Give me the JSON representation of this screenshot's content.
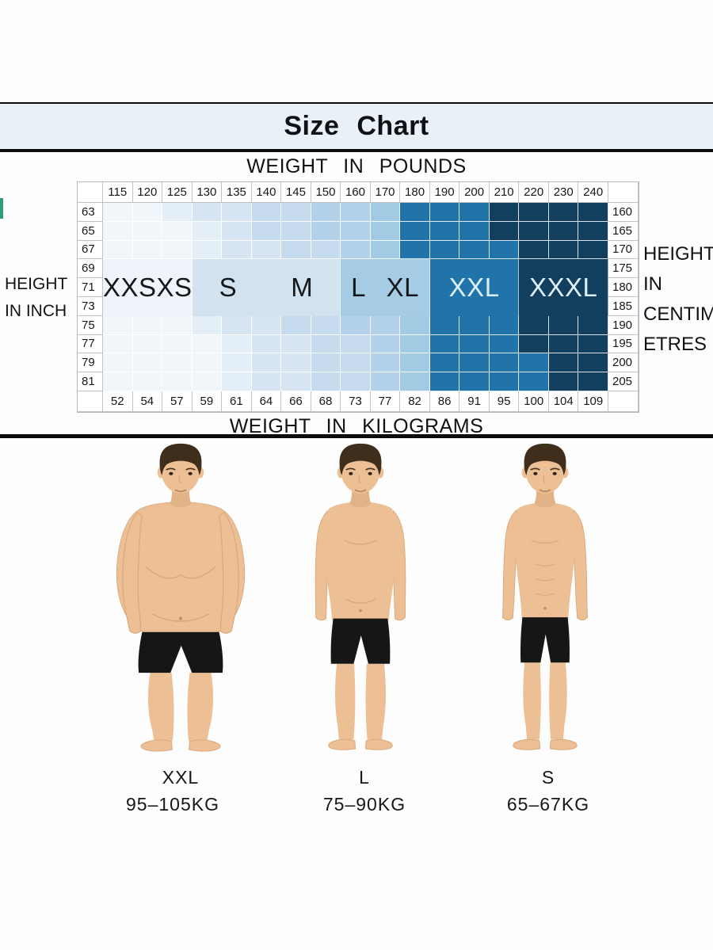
{
  "title": {
    "text": "Size Chart"
  },
  "axes": {
    "inch_label_lines": [
      "HEIGHT",
      "IN INCH"
    ],
    "cm_label_lines": [
      "HEIGHT",
      "IN",
      "CENTIM",
      "ETRES"
    ]
  },
  "accent": {
    "green_tab": "#2f9e78",
    "title_band_bg": "#e9f0f8"
  },
  "chart_data": {
    "type": "heatmap",
    "title": "Size Chart",
    "x_top": {
      "label": "WEIGHT IN POUNDS",
      "ticks": [
        "115",
        "120",
        "125",
        "130",
        "135",
        "140",
        "145",
        "150",
        "160",
        "170",
        "180",
        "190",
        "200",
        "210",
        "220",
        "230",
        "240"
      ]
    },
    "x_bottom": {
      "label": "WEIGHT IN KILOGRAMS",
      "ticks": [
        "52",
        "54",
        "57",
        "59",
        "61",
        "64",
        "66",
        "68",
        "73",
        "77",
        "82",
        "86",
        "91",
        "95",
        "100",
        "104",
        "109"
      ]
    },
    "y_left": {
      "label": "HEIGHT IN INCH",
      "ticks": [
        "63",
        "65",
        "67",
        "69",
        "71",
        "73",
        "75",
        "77",
        "79",
        "81"
      ]
    },
    "y_right": {
      "label": "HEIGHT IN CENTIMETRES",
      "ticks": [
        "160",
        "165",
        "170",
        "175",
        "180",
        "185",
        "190",
        "195",
        "200",
        "205"
      ]
    },
    "sizes": [
      "XXS",
      "XS",
      "S",
      "M",
      "L",
      "XL",
      "XXL",
      "XXXL"
    ],
    "palette": [
      "#f1f6fb",
      "#e4eef7",
      "#d6e5f1",
      "#c6dcee",
      "#b3d2e9",
      "#a3cae3",
      "#2174a9",
      "#133f5e"
    ],
    "top_rows": [
      {
        "inch": "63",
        "cm": "160",
        "cells": [
          0,
          0,
          1,
          2,
          2,
          3,
          3,
          4,
          4,
          5,
          6,
          6,
          6,
          7,
          7,
          7,
          7
        ]
      },
      {
        "inch": "65",
        "cm": "165",
        "cells": [
          0,
          0,
          0,
          1,
          2,
          3,
          3,
          4,
          4,
          5,
          6,
          6,
          6,
          7,
          7,
          7,
          7
        ]
      },
      {
        "inch": "67",
        "cm": "170",
        "cells": [
          0,
          0,
          0,
          1,
          2,
          2,
          3,
          3,
          4,
          5,
          6,
          6,
          6,
          6,
          7,
          7,
          7
        ]
      }
    ],
    "band": {
      "inches": [
        "69",
        "71",
        "73"
      ],
      "cms": [
        "175",
        "180",
        "185"
      ],
      "segments": [
        {
          "span": 3,
          "color": "#eef4fa",
          "labels": [
            "XXS",
            "XS"
          ],
          "text_color": "#15181b"
        },
        {
          "span": 5,
          "color": "#d3e2ef",
          "labels": [
            "S",
            "M"
          ],
          "text_color": "#15181b"
        },
        {
          "span": 3,
          "color": "#a6cbe4",
          "labels": [
            "L",
            "XL"
          ],
          "text_color": "#15181b"
        },
        {
          "span": 3,
          "color": "#2174a9",
          "labels": [
            "XXL"
          ],
          "text_color": "#ddeff9"
        },
        {
          "span": 3,
          "color": "#133f5e",
          "labels": [
            "XXXL"
          ],
          "text_color": "#ddeff9"
        }
      ]
    },
    "bottom_rows": [
      {
        "inch": "75",
        "cm": "190",
        "cells": [
          0,
          0,
          0,
          1,
          2,
          2,
          3,
          3,
          4,
          4,
          5,
          6,
          6,
          6,
          7,
          7,
          7
        ]
      },
      {
        "inch": "77",
        "cm": "195",
        "cells": [
          0,
          0,
          0,
          0,
          1,
          2,
          2,
          3,
          3,
          4,
          5,
          6,
          6,
          6,
          7,
          7,
          7
        ]
      },
      {
        "inch": "79",
        "cm": "200",
        "cells": [
          0,
          0,
          0,
          0,
          1,
          2,
          2,
          3,
          3,
          4,
          5,
          6,
          6,
          6,
          6,
          7,
          7
        ]
      },
      {
        "inch": "81",
        "cm": "205",
        "cells": [
          0,
          0,
          0,
          0,
          1,
          2,
          2,
          3,
          3,
          4,
          5,
          6,
          6,
          6,
          6,
          7,
          7
        ]
      }
    ]
  },
  "figures": [
    {
      "size": "XXL",
      "weight": "95–105KG",
      "build": "heavy"
    },
    {
      "size": "L",
      "weight": "75–90KG",
      "build": "medium"
    },
    {
      "size": "S",
      "weight": "65–67KG",
      "build": "slim"
    }
  ]
}
